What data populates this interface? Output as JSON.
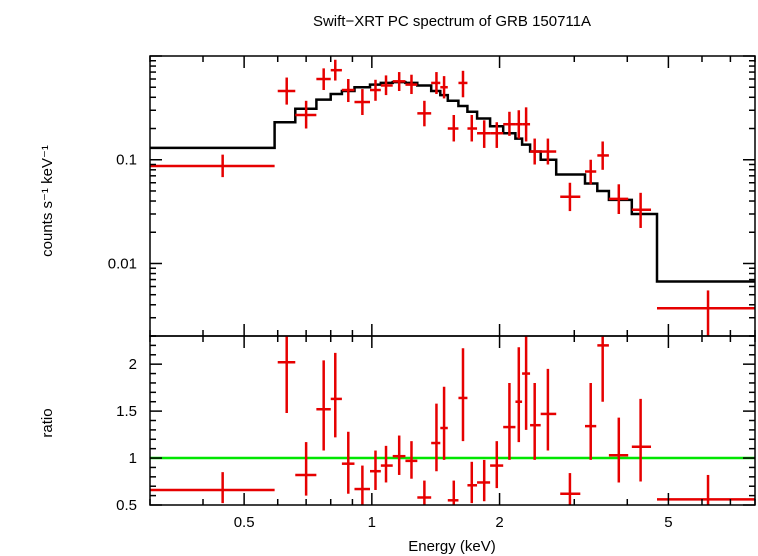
{
  "chart_data": {
    "title": "Swift−XRT PC spectrum of GRB 150711A",
    "type": "scatter",
    "xlabel": "Energy (keV)",
    "x_scale": "log",
    "xlim": [
      0.3,
      8.0
    ],
    "x_ticks": [
      0.5,
      1,
      2,
      5
    ],
    "x_tick_labels": [
      "0.5",
      "1",
      "2",
      "5"
    ],
    "panels": [
      {
        "name": "spectrum",
        "ylabel": "counts s⁻¹ keV⁻¹",
        "y_scale": "log",
        "ylim": [
          0.002,
          1.0
        ],
        "y_ticks": [
          0.1,
          0.01
        ],
        "y_tick_labels": [
          "0.1",
          "0.01"
        ],
        "data": [
          {
            "x": 0.445,
            "xlo": 0.3,
            "xhi": 0.59,
            "y": 0.087,
            "ylo": 0.068,
            "yhi": 0.112
          },
          {
            "x": 0.63,
            "xlo": 0.6,
            "xhi": 0.66,
            "y": 0.46,
            "ylo": 0.34,
            "yhi": 0.62
          },
          {
            "x": 0.7,
            "xlo": 0.66,
            "xhi": 0.74,
            "y": 0.27,
            "ylo": 0.2,
            "yhi": 0.37
          },
          {
            "x": 0.77,
            "xlo": 0.74,
            "xhi": 0.8,
            "y": 0.6,
            "ylo": 0.47,
            "yhi": 0.76
          },
          {
            "x": 0.82,
            "xlo": 0.8,
            "xhi": 0.85,
            "y": 0.73,
            "ylo": 0.58,
            "yhi": 0.92
          },
          {
            "x": 0.88,
            "xlo": 0.85,
            "xhi": 0.91,
            "y": 0.47,
            "ylo": 0.36,
            "yhi": 0.6
          },
          {
            "x": 0.95,
            "xlo": 0.91,
            "xhi": 0.99,
            "y": 0.36,
            "ylo": 0.27,
            "yhi": 0.48
          },
          {
            "x": 1.02,
            "xlo": 0.99,
            "xhi": 1.05,
            "y": 0.47,
            "ylo": 0.37,
            "yhi": 0.59
          },
          {
            "x": 1.08,
            "xlo": 1.05,
            "xhi": 1.12,
            "y": 0.52,
            "ylo": 0.42,
            "yhi": 0.65
          },
          {
            "x": 1.16,
            "xlo": 1.12,
            "xhi": 1.2,
            "y": 0.57,
            "ylo": 0.46,
            "yhi": 0.7
          },
          {
            "x": 1.24,
            "xlo": 1.2,
            "xhi": 1.28,
            "y": 0.53,
            "ylo": 0.43,
            "yhi": 0.66
          },
          {
            "x": 1.33,
            "xlo": 1.28,
            "xhi": 1.38,
            "y": 0.28,
            "ylo": 0.21,
            "yhi": 0.37
          },
          {
            "x": 1.42,
            "xlo": 1.38,
            "xhi": 1.45,
            "y": 0.55,
            "ylo": 0.43,
            "yhi": 0.7
          },
          {
            "x": 1.48,
            "xlo": 1.45,
            "xhi": 1.51,
            "y": 0.5,
            "ylo": 0.39,
            "yhi": 0.64
          },
          {
            "x": 1.56,
            "xlo": 1.51,
            "xhi": 1.6,
            "y": 0.2,
            "ylo": 0.15,
            "yhi": 0.27
          },
          {
            "x": 1.64,
            "xlo": 1.6,
            "xhi": 1.68,
            "y": 0.55,
            "ylo": 0.4,
            "yhi": 0.72
          },
          {
            "x": 1.72,
            "xlo": 1.68,
            "xhi": 1.77,
            "y": 0.2,
            "ylo": 0.15,
            "yhi": 0.27
          },
          {
            "x": 1.84,
            "xlo": 1.77,
            "xhi": 1.9,
            "y": 0.18,
            "ylo": 0.13,
            "yhi": 0.24
          },
          {
            "x": 1.97,
            "xlo": 1.9,
            "xhi": 2.04,
            "y": 0.18,
            "ylo": 0.13,
            "yhi": 0.23
          },
          {
            "x": 2.11,
            "xlo": 2.04,
            "xhi": 2.18,
            "y": 0.22,
            "ylo": 0.17,
            "yhi": 0.29
          },
          {
            "x": 2.22,
            "xlo": 2.18,
            "xhi": 2.26,
            "y": 0.22,
            "ylo": 0.16,
            "yhi": 0.3
          },
          {
            "x": 2.31,
            "xlo": 2.26,
            "xhi": 2.36,
            "y": 0.22,
            "ylo": 0.15,
            "yhi": 0.32
          },
          {
            "x": 2.42,
            "xlo": 2.36,
            "xhi": 2.5,
            "y": 0.12,
            "ylo": 0.09,
            "yhi": 0.16
          },
          {
            "x": 2.6,
            "xlo": 2.5,
            "xhi": 2.72,
            "y": 0.12,
            "ylo": 0.09,
            "yhi": 0.16
          },
          {
            "x": 2.93,
            "xlo": 2.78,
            "xhi": 3.1,
            "y": 0.044,
            "ylo": 0.032,
            "yhi": 0.06
          },
          {
            "x": 3.28,
            "xlo": 3.18,
            "xhi": 3.38,
            "y": 0.077,
            "ylo": 0.058,
            "yhi": 0.1
          },
          {
            "x": 3.5,
            "xlo": 3.4,
            "xhi": 3.62,
            "y": 0.11,
            "ylo": 0.08,
            "yhi": 0.15
          },
          {
            "x": 3.82,
            "xlo": 3.62,
            "xhi": 4.02,
            "y": 0.042,
            "ylo": 0.03,
            "yhi": 0.058
          },
          {
            "x": 4.3,
            "xlo": 4.1,
            "xhi": 4.55,
            "y": 0.033,
            "ylo": 0.022,
            "yhi": 0.048
          },
          {
            "x": 6.2,
            "xlo": 4.7,
            "xhi": 8.0,
            "y": 0.0037,
            "ylo": 0.0019,
            "yhi": 0.0055
          }
        ],
        "model": [
          {
            "x1": 0.3,
            "x2": 0.59,
            "y": 0.13
          },
          {
            "x1": 0.59,
            "x2": 0.66,
            "y": 0.23
          },
          {
            "x1": 0.66,
            "x2": 0.74,
            "y": 0.31
          },
          {
            "x1": 0.74,
            "x2": 0.8,
            "y": 0.38
          },
          {
            "x1": 0.8,
            "x2": 0.85,
            "y": 0.43
          },
          {
            "x1": 0.85,
            "x2": 0.91,
            "y": 0.46
          },
          {
            "x1": 0.91,
            "x2": 0.99,
            "y": 0.5
          },
          {
            "x1": 0.99,
            "x2": 1.05,
            "y": 0.53
          },
          {
            "x1": 1.05,
            "x2": 1.12,
            "y": 0.55
          },
          {
            "x1": 1.12,
            "x2": 1.2,
            "y": 0.56
          },
          {
            "x1": 1.2,
            "x2": 1.28,
            "y": 0.55
          },
          {
            "x1": 1.28,
            "x2": 1.38,
            "y": 0.52
          },
          {
            "x1": 1.38,
            "x2": 1.45,
            "y": 0.46
          },
          {
            "x1": 1.45,
            "x2": 1.51,
            "y": 0.42
          },
          {
            "x1": 1.51,
            "x2": 1.6,
            "y": 0.37
          },
          {
            "x1": 1.6,
            "x2": 1.68,
            "y": 0.33
          },
          {
            "x1": 1.68,
            "x2": 1.77,
            "y": 0.29
          },
          {
            "x1": 1.77,
            "x2": 1.9,
            "y": 0.25
          },
          {
            "x1": 1.9,
            "x2": 2.04,
            "y": 0.21
          },
          {
            "x1": 2.04,
            "x2": 2.18,
            "y": 0.18
          },
          {
            "x1": 2.18,
            "x2": 2.26,
            "y": 0.16
          },
          {
            "x1": 2.26,
            "x2": 2.36,
            "y": 0.14
          },
          {
            "x1": 2.36,
            "x2": 2.5,
            "y": 0.12
          },
          {
            "x1": 2.5,
            "x2": 2.72,
            "y": 0.1
          },
          {
            "x1": 2.72,
            "x2": 3.18,
            "y": 0.072
          },
          {
            "x1": 3.18,
            "x2": 3.4,
            "y": 0.059
          },
          {
            "x1": 3.4,
            "x2": 3.62,
            "y": 0.05
          },
          {
            "x1": 3.62,
            "x2": 4.1,
            "y": 0.041
          },
          {
            "x1": 4.1,
            "x2": 4.7,
            "y": 0.03
          },
          {
            "x1": 4.7,
            "x2": 8.0,
            "y": 0.0067
          }
        ]
      },
      {
        "name": "ratio",
        "ylabel": "ratio",
        "y_scale": "linear",
        "ylim": [
          0.5,
          2.3
        ],
        "y_ticks": [
          0.5,
          1,
          1.5,
          2
        ],
        "y_tick_labels": [
          "0.5",
          "1",
          "1.5",
          "2"
        ],
        "reference_line": 1,
        "data": [
          {
            "x": 0.445,
            "xlo": 0.3,
            "xhi": 0.59,
            "y": 0.66,
            "ylo": 0.52,
            "yhi": 0.85
          },
          {
            "x": 0.63,
            "xlo": 0.6,
            "xhi": 0.66,
            "y": 2.02,
            "ylo": 1.48,
            "yhi": 2.55
          },
          {
            "x": 0.7,
            "xlo": 0.66,
            "xhi": 0.74,
            "y": 0.82,
            "ylo": 0.6,
            "yhi": 1.17
          },
          {
            "x": 0.77,
            "xlo": 0.74,
            "xhi": 0.8,
            "y": 1.52,
            "ylo": 1.08,
            "yhi": 2.04
          },
          {
            "x": 0.82,
            "xlo": 0.8,
            "xhi": 0.85,
            "y": 1.63,
            "ylo": 1.22,
            "yhi": 2.12
          },
          {
            "x": 0.88,
            "xlo": 0.85,
            "xhi": 0.91,
            "y": 0.94,
            "ylo": 0.62,
            "yhi": 1.28
          },
          {
            "x": 0.95,
            "xlo": 0.91,
            "xhi": 0.99,
            "y": 0.67,
            "ylo": 0.5,
            "yhi": 0.92
          },
          {
            "x": 1.02,
            "xlo": 0.99,
            "xhi": 1.05,
            "y": 0.86,
            "ylo": 0.66,
            "yhi": 1.08
          },
          {
            "x": 1.08,
            "xlo": 1.05,
            "xhi": 1.12,
            "y": 0.92,
            "ylo": 0.74,
            "yhi": 1.13
          },
          {
            "x": 1.16,
            "xlo": 1.12,
            "xhi": 1.2,
            "y": 1.02,
            "ylo": 0.82,
            "yhi": 1.24
          },
          {
            "x": 1.24,
            "xlo": 1.2,
            "xhi": 1.28,
            "y": 0.97,
            "ylo": 0.78,
            "yhi": 1.18
          },
          {
            "x": 1.33,
            "xlo": 1.28,
            "xhi": 1.38,
            "y": 0.58,
            "ylo": 0.42,
            "yhi": 0.76
          },
          {
            "x": 1.42,
            "xlo": 1.38,
            "xhi": 1.45,
            "y": 1.16,
            "ylo": 0.86,
            "yhi": 1.58
          },
          {
            "x": 1.48,
            "xlo": 1.45,
            "xhi": 1.51,
            "y": 1.32,
            "ylo": 0.98,
            "yhi": 1.76
          },
          {
            "x": 1.56,
            "xlo": 1.51,
            "xhi": 1.6,
            "y": 0.55,
            "ylo": 0.4,
            "yhi": 0.76
          },
          {
            "x": 1.64,
            "xlo": 1.6,
            "xhi": 1.68,
            "y": 1.64,
            "ylo": 1.18,
            "yhi": 2.17
          },
          {
            "x": 1.72,
            "xlo": 1.68,
            "xhi": 1.77,
            "y": 0.71,
            "ylo": 0.52,
            "yhi": 0.96
          },
          {
            "x": 1.84,
            "xlo": 1.77,
            "xhi": 1.9,
            "y": 0.74,
            "ylo": 0.54,
            "yhi": 0.98
          },
          {
            "x": 1.97,
            "xlo": 1.9,
            "xhi": 2.04,
            "y": 0.92,
            "ylo": 0.68,
            "yhi": 1.18
          },
          {
            "x": 2.11,
            "xlo": 2.04,
            "xhi": 2.18,
            "y": 1.33,
            "ylo": 0.98,
            "yhi": 1.8
          },
          {
            "x": 2.22,
            "xlo": 2.18,
            "xhi": 2.26,
            "y": 1.6,
            "ylo": 1.17,
            "yhi": 2.18
          },
          {
            "x": 2.31,
            "xlo": 2.26,
            "xhi": 2.36,
            "y": 1.9,
            "ylo": 1.3,
            "yhi": 2.55
          },
          {
            "x": 2.42,
            "xlo": 2.36,
            "xhi": 2.5,
            "y": 1.35,
            "ylo": 0.98,
            "yhi": 1.8
          },
          {
            "x": 2.6,
            "xlo": 2.5,
            "xhi": 2.72,
            "y": 1.47,
            "ylo": 1.08,
            "yhi": 1.95
          },
          {
            "x": 2.93,
            "xlo": 2.78,
            "xhi": 3.1,
            "y": 0.62,
            "ylo": 0.46,
            "yhi": 0.84
          },
          {
            "x": 3.28,
            "xlo": 3.18,
            "xhi": 3.38,
            "y": 1.34,
            "ylo": 0.98,
            "yhi": 1.8
          },
          {
            "x": 3.5,
            "xlo": 3.4,
            "xhi": 3.62,
            "y": 2.2,
            "ylo": 1.6,
            "yhi": 2.6
          },
          {
            "x": 3.82,
            "xlo": 3.62,
            "xhi": 4.02,
            "y": 1.03,
            "ylo": 0.74,
            "yhi": 1.43
          },
          {
            "x": 4.3,
            "xlo": 4.1,
            "xhi": 4.55,
            "y": 1.12,
            "ylo": 0.75,
            "yhi": 1.63
          },
          {
            "x": 6.2,
            "xlo": 4.7,
            "xhi": 8.0,
            "y": 0.56,
            "ylo": 0.3,
            "yhi": 0.82
          }
        ]
      }
    ],
    "colors": {
      "data": "#e60000",
      "model": "#000000",
      "reference": "#00e600",
      "axes": "#000000"
    }
  }
}
